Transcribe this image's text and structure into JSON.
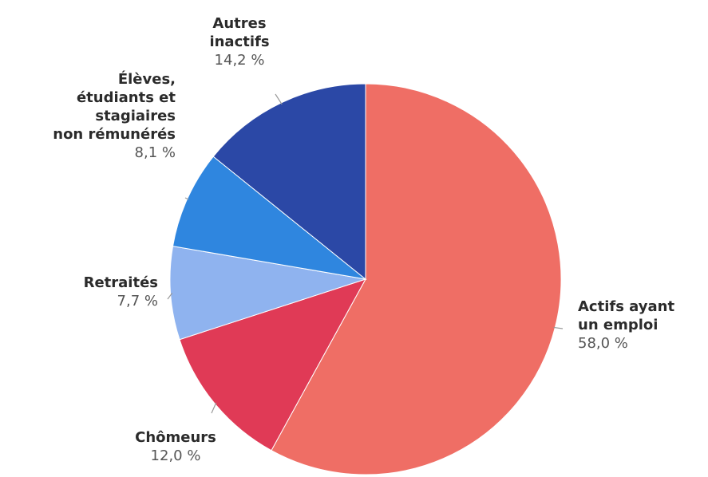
{
  "chart_data": {
    "type": "pie",
    "categories": [
      "Actifs ayant\nun emploi",
      "Chômeurs",
      "Retraités",
      "Élèves,\nétudiants et\nstagiaires\nnon rémunérés",
      "Autres\ninactifs"
    ],
    "values": [
      58.0,
      12.0,
      7.7,
      8.1,
      14.2
    ],
    "value_labels": [
      "58,0 %",
      "12,0 %",
      "7,7 %",
      "8,1 %",
      "14,2 %"
    ],
    "colors": [
      "#ef6e65",
      "#e03a56",
      "#8fb3ef",
      "#2f86df",
      "#2b48a6"
    ]
  }
}
